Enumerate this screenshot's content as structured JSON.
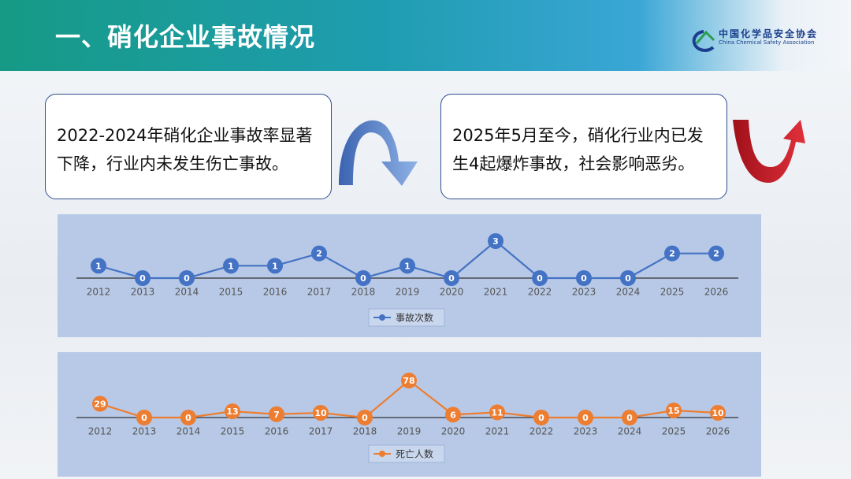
{
  "header": {
    "title": "一、硝化企业事故情况",
    "logo_cn": "中国化学品安全协会",
    "logo_en": "China Chemical Safety Association"
  },
  "callouts": [
    "2022-2024年硝化企业事故率显著下降，行业内未发生伤亡事故。",
    "2025年5月至今，硝化行业内已发生4起爆炸事故，社会影响恶劣。"
  ],
  "chart_data": [
    {
      "type": "line",
      "categories": [
        "2012",
        "2013",
        "2014",
        "2015",
        "2016",
        "2017",
        "2018",
        "2019",
        "2020",
        "2021",
        "2022",
        "2023",
        "2024",
        "2025",
        "2026"
      ],
      "series": [
        {
          "name": "事故次数",
          "color": "#4472c4",
          "values": [
            1,
            0,
            0,
            1,
            1,
            2,
            0,
            1,
            0,
            3,
            0,
            0,
            0,
            2,
            2
          ]
        }
      ],
      "ylim": [
        0,
        3
      ],
      "legend": "bottom"
    },
    {
      "type": "line",
      "categories": [
        "2012",
        "2013",
        "2014",
        "2015",
        "2016",
        "2017",
        "2018",
        "2019",
        "2020",
        "2021",
        "2022",
        "2023",
        "2024",
        "2025",
        "2026"
      ],
      "series": [
        {
          "name": "死亡人数",
          "color": "#ed7d31",
          "values": [
            29,
            0,
            0,
            13,
            7,
            10,
            0,
            78,
            6,
            11,
            0,
            0,
            0,
            15,
            10
          ]
        }
      ],
      "ylim": [
        0,
        78
      ],
      "legend": "bottom"
    }
  ]
}
